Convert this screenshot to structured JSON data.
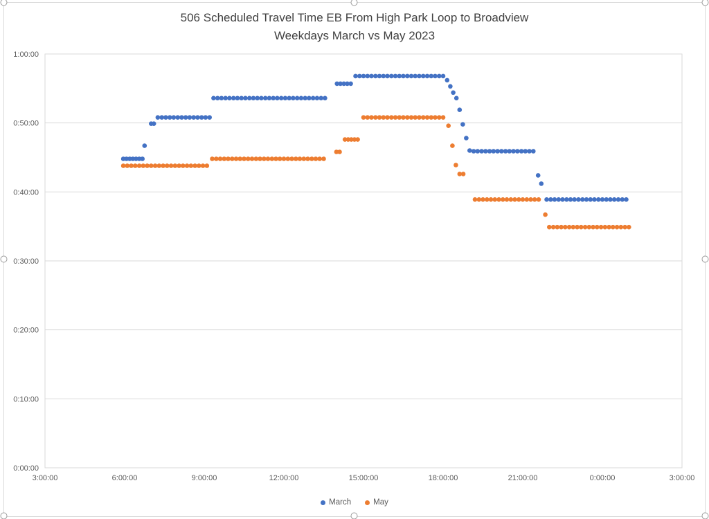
{
  "chart_data": {
    "type": "scatter",
    "title_line1": "506 Scheduled Travel Time EB From High Park Loop to Broadview",
    "title_line2": "Weekdays March vs May 2023",
    "x_axis": {
      "min_hours": 3,
      "max_hours": 27,
      "tick_interval_hours": 3,
      "tick_labels": [
        "3:00:00",
        "6:00:00",
        "9:00:00",
        "12:00:00",
        "15:00:00",
        "18:00:00",
        "21:00:00",
        "0:00:00",
        "3:00:00"
      ]
    },
    "y_axis": {
      "min_minutes": 0,
      "max_minutes": 60,
      "tick_interval_minutes": 10,
      "tick_labels": [
        "0:00:00",
        "0:10:00",
        "0:20:00",
        "0:30:00",
        "0:40:00",
        "0:50:00",
        "1:00:00"
      ]
    },
    "grid": "horizontal-only",
    "legend_position": "bottom-center",
    "legend": [
      {
        "name": "March",
        "color": "#4472C4"
      },
      {
        "name": "May",
        "color": "#ED7D31"
      }
    ],
    "series": [
      {
        "name": "March",
        "color": "#4472C4",
        "points": [
          [
            5.95,
            44.8
          ],
          [
            6.07,
            44.8
          ],
          [
            6.19,
            44.8
          ],
          [
            6.31,
            44.8
          ],
          [
            6.43,
            44.8
          ],
          [
            6.55,
            44.8
          ],
          [
            6.67,
            44.8
          ],
          [
            6.75,
            46.7
          ],
          [
            7.0,
            49.9
          ],
          [
            7.1,
            49.9
          ],
          [
            7.25,
            50.8
          ],
          [
            7.4,
            50.8
          ],
          [
            7.55,
            50.8
          ],
          [
            7.7,
            50.8
          ],
          [
            7.85,
            50.8
          ],
          [
            8.0,
            50.8
          ],
          [
            8.15,
            50.8
          ],
          [
            8.3,
            50.8
          ],
          [
            8.45,
            50.8
          ],
          [
            8.6,
            50.8
          ],
          [
            8.75,
            50.8
          ],
          [
            8.9,
            50.8
          ],
          [
            9.05,
            50.8
          ],
          [
            9.2,
            50.8
          ],
          [
            9.35,
            53.6
          ],
          [
            9.5,
            53.6
          ],
          [
            9.65,
            53.6
          ],
          [
            9.8,
            53.6
          ],
          [
            9.95,
            53.6
          ],
          [
            10.1,
            53.6
          ],
          [
            10.25,
            53.6
          ],
          [
            10.4,
            53.6
          ],
          [
            10.55,
            53.6
          ],
          [
            10.7,
            53.6
          ],
          [
            10.85,
            53.6
          ],
          [
            11.0,
            53.6
          ],
          [
            11.15,
            53.6
          ],
          [
            11.3,
            53.6
          ],
          [
            11.45,
            53.6
          ],
          [
            11.6,
            53.6
          ],
          [
            11.75,
            53.6
          ],
          [
            11.9,
            53.6
          ],
          [
            12.05,
            53.6
          ],
          [
            12.2,
            53.6
          ],
          [
            12.35,
            53.6
          ],
          [
            12.5,
            53.6
          ],
          [
            12.65,
            53.6
          ],
          [
            12.8,
            53.6
          ],
          [
            12.95,
            53.6
          ],
          [
            13.1,
            53.6
          ],
          [
            13.25,
            53.6
          ],
          [
            13.4,
            53.6
          ],
          [
            13.55,
            53.6
          ],
          [
            14.0,
            55.7
          ],
          [
            14.13,
            55.7
          ],
          [
            14.26,
            55.7
          ],
          [
            14.39,
            55.7
          ],
          [
            14.52,
            55.7
          ],
          [
            14.7,
            56.8
          ],
          [
            14.85,
            56.8
          ],
          [
            15.0,
            56.8
          ],
          [
            15.15,
            56.8
          ],
          [
            15.3,
            56.8
          ],
          [
            15.45,
            56.8
          ],
          [
            15.6,
            56.8
          ],
          [
            15.75,
            56.8
          ],
          [
            15.9,
            56.8
          ],
          [
            16.05,
            56.8
          ],
          [
            16.2,
            56.8
          ],
          [
            16.35,
            56.8
          ],
          [
            16.5,
            56.8
          ],
          [
            16.65,
            56.8
          ],
          [
            16.8,
            56.8
          ],
          [
            16.95,
            56.8
          ],
          [
            17.1,
            56.8
          ],
          [
            17.25,
            56.8
          ],
          [
            17.4,
            56.8
          ],
          [
            17.55,
            56.8
          ],
          [
            17.7,
            56.8
          ],
          [
            17.85,
            56.8
          ],
          [
            18.0,
            56.8
          ],
          [
            18.15,
            56.2
          ],
          [
            18.27,
            55.3
          ],
          [
            18.38,
            54.4
          ],
          [
            18.5,
            53.6
          ],
          [
            18.62,
            51.9
          ],
          [
            18.74,
            49.8
          ],
          [
            18.87,
            47.8
          ],
          [
            19.0,
            46.0
          ],
          [
            19.15,
            45.9
          ],
          [
            19.3,
            45.9
          ],
          [
            19.45,
            45.9
          ],
          [
            19.6,
            45.9
          ],
          [
            19.75,
            45.9
          ],
          [
            19.9,
            45.9
          ],
          [
            20.05,
            45.9
          ],
          [
            20.2,
            45.9
          ],
          [
            20.35,
            45.9
          ],
          [
            20.5,
            45.9
          ],
          [
            20.65,
            45.9
          ],
          [
            20.8,
            45.9
          ],
          [
            20.95,
            45.9
          ],
          [
            21.1,
            45.9
          ],
          [
            21.25,
            45.9
          ],
          [
            21.4,
            45.9
          ],
          [
            21.58,
            42.4
          ],
          [
            21.7,
            41.2
          ],
          [
            21.9,
            38.9
          ],
          [
            22.05,
            38.9
          ],
          [
            22.2,
            38.9
          ],
          [
            22.35,
            38.9
          ],
          [
            22.5,
            38.9
          ],
          [
            22.65,
            38.9
          ],
          [
            22.8,
            38.9
          ],
          [
            22.95,
            38.9
          ],
          [
            23.1,
            38.9
          ],
          [
            23.25,
            38.9
          ],
          [
            23.4,
            38.9
          ],
          [
            23.55,
            38.9
          ],
          [
            23.7,
            38.9
          ],
          [
            23.85,
            38.9
          ],
          [
            24.0,
            38.9
          ],
          [
            24.15,
            38.9
          ],
          [
            24.3,
            38.9
          ],
          [
            24.45,
            38.9
          ],
          [
            24.6,
            38.9
          ],
          [
            24.75,
            38.9
          ],
          [
            24.9,
            38.9
          ]
        ]
      },
      {
        "name": "May",
        "color": "#ED7D31",
        "points": [
          [
            5.95,
            43.8
          ],
          [
            6.1,
            43.8
          ],
          [
            6.25,
            43.8
          ],
          [
            6.4,
            43.8
          ],
          [
            6.55,
            43.8
          ],
          [
            6.7,
            43.8
          ],
          [
            6.85,
            43.8
          ],
          [
            7.0,
            43.8
          ],
          [
            7.15,
            43.8
          ],
          [
            7.3,
            43.8
          ],
          [
            7.45,
            43.8
          ],
          [
            7.6,
            43.8
          ],
          [
            7.75,
            43.8
          ],
          [
            7.9,
            43.8
          ],
          [
            8.05,
            43.8
          ],
          [
            8.2,
            43.8
          ],
          [
            8.35,
            43.8
          ],
          [
            8.5,
            43.8
          ],
          [
            8.65,
            43.8
          ],
          [
            8.8,
            43.8
          ],
          [
            8.95,
            43.8
          ],
          [
            9.1,
            43.8
          ],
          [
            9.3,
            44.8
          ],
          [
            9.45,
            44.8
          ],
          [
            9.6,
            44.8
          ],
          [
            9.75,
            44.8
          ],
          [
            9.9,
            44.8
          ],
          [
            10.05,
            44.8
          ],
          [
            10.2,
            44.8
          ],
          [
            10.35,
            44.8
          ],
          [
            10.5,
            44.8
          ],
          [
            10.65,
            44.8
          ],
          [
            10.8,
            44.8
          ],
          [
            10.95,
            44.8
          ],
          [
            11.1,
            44.8
          ],
          [
            11.25,
            44.8
          ],
          [
            11.4,
            44.8
          ],
          [
            11.55,
            44.8
          ],
          [
            11.7,
            44.8
          ],
          [
            11.85,
            44.8
          ],
          [
            12.0,
            44.8
          ],
          [
            12.15,
            44.8
          ],
          [
            12.3,
            44.8
          ],
          [
            12.45,
            44.8
          ],
          [
            12.6,
            44.8
          ],
          [
            12.75,
            44.8
          ],
          [
            12.9,
            44.8
          ],
          [
            13.05,
            44.8
          ],
          [
            13.2,
            44.8
          ],
          [
            13.35,
            44.8
          ],
          [
            13.5,
            44.8
          ],
          [
            13.98,
            45.8
          ],
          [
            14.1,
            45.8
          ],
          [
            14.3,
            47.6
          ],
          [
            14.42,
            47.6
          ],
          [
            14.54,
            47.6
          ],
          [
            14.66,
            47.6
          ],
          [
            14.78,
            47.6
          ],
          [
            15.0,
            50.8
          ],
          [
            15.15,
            50.8
          ],
          [
            15.3,
            50.8
          ],
          [
            15.45,
            50.8
          ],
          [
            15.6,
            50.8
          ],
          [
            15.75,
            50.8
          ],
          [
            15.9,
            50.8
          ],
          [
            16.05,
            50.8
          ],
          [
            16.2,
            50.8
          ],
          [
            16.35,
            50.8
          ],
          [
            16.5,
            50.8
          ],
          [
            16.65,
            50.8
          ],
          [
            16.8,
            50.8
          ],
          [
            16.95,
            50.8
          ],
          [
            17.1,
            50.8
          ],
          [
            17.25,
            50.8
          ],
          [
            17.4,
            50.8
          ],
          [
            17.55,
            50.8
          ],
          [
            17.7,
            50.8
          ],
          [
            17.85,
            50.8
          ],
          [
            18.0,
            50.8
          ],
          [
            18.2,
            49.6
          ],
          [
            18.35,
            46.7
          ],
          [
            18.48,
            43.9
          ],
          [
            18.62,
            42.6
          ],
          [
            18.76,
            42.6
          ],
          [
            19.2,
            38.9
          ],
          [
            19.35,
            38.9
          ],
          [
            19.5,
            38.9
          ],
          [
            19.65,
            38.9
          ],
          [
            19.8,
            38.9
          ],
          [
            19.95,
            38.9
          ],
          [
            20.1,
            38.9
          ],
          [
            20.25,
            38.9
          ],
          [
            20.4,
            38.9
          ],
          [
            20.55,
            38.9
          ],
          [
            20.7,
            38.9
          ],
          [
            20.85,
            38.9
          ],
          [
            21.0,
            38.9
          ],
          [
            21.15,
            38.9
          ],
          [
            21.3,
            38.9
          ],
          [
            21.45,
            38.9
          ],
          [
            21.6,
            38.9
          ],
          [
            21.85,
            36.7
          ],
          [
            22.0,
            34.9
          ],
          [
            22.15,
            34.9
          ],
          [
            22.3,
            34.9
          ],
          [
            22.45,
            34.9
          ],
          [
            22.6,
            34.9
          ],
          [
            22.75,
            34.9
          ],
          [
            22.9,
            34.9
          ],
          [
            23.05,
            34.9
          ],
          [
            23.2,
            34.9
          ],
          [
            23.35,
            34.9
          ],
          [
            23.5,
            34.9
          ],
          [
            23.65,
            34.9
          ],
          [
            23.8,
            34.9
          ],
          [
            23.95,
            34.9
          ],
          [
            24.1,
            34.9
          ],
          [
            24.25,
            34.9
          ],
          [
            24.4,
            34.9
          ],
          [
            24.55,
            34.9
          ],
          [
            24.7,
            34.9
          ],
          [
            24.85,
            34.9
          ],
          [
            25.0,
            34.9
          ]
        ]
      }
    ],
    "colors": {
      "gridline": "#D9D9D9",
      "plot_border": "#D9D9D9",
      "axis_text": "#595959",
      "title_text": "#404040",
      "selection_handle_stroke": "#9B9B9B"
    }
  }
}
